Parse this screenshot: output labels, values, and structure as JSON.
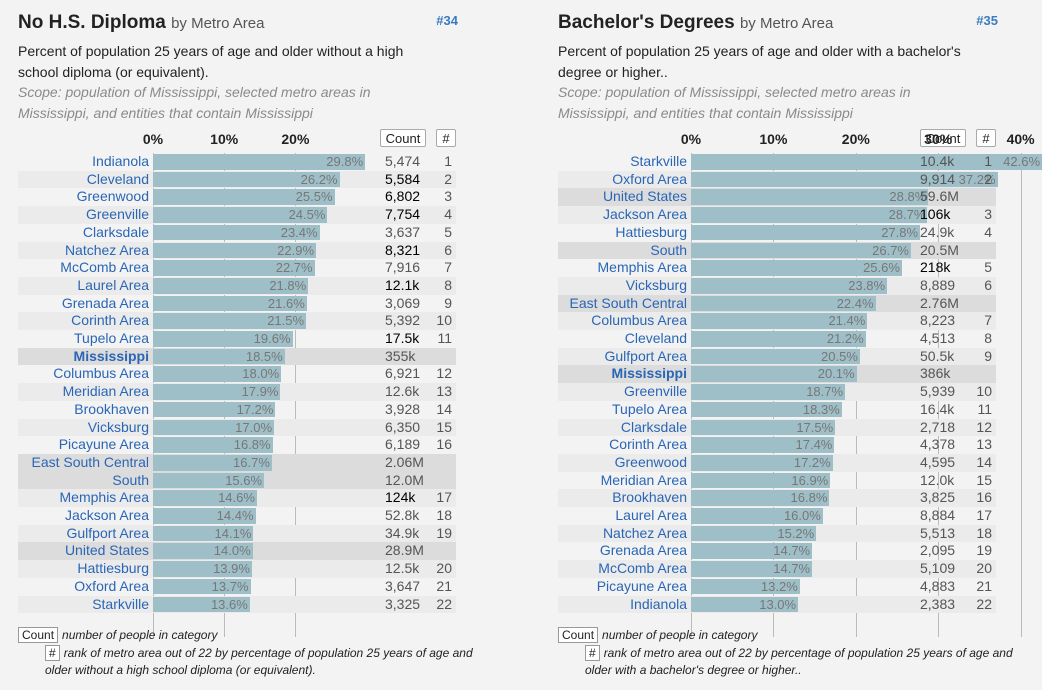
{
  "panels": [
    {
      "title": "No H.S. Diploma",
      "title_sub": "by Metro Area",
      "number": "#34",
      "description": "Percent of population 25 years of age and older without a high school diploma (or equivalent).",
      "scope": "Scope: population of Mississippi, selected metro areas in Mississippi, and entities that contain Mississippi",
      "count_header": "Count",
      "rank_header": "#",
      "footer_count_box": "Count",
      "footer_count_text": "number of people in category",
      "footer_rank_box": "#",
      "footer_rank_text": "rank of metro area out of 22 by percentage of population 25 years of age and older without a high school diploma (or equivalent).",
      "chart_data": {
        "type": "bar",
        "orientation": "horizontal",
        "title": "No H.S. Diploma",
        "x_ticks": [
          "0%",
          "10%",
          "20%"
        ],
        "xlim": [
          0,
          30
        ],
        "rows": [
          {
            "label": "Indianola",
            "value": 29.8,
            "pct": "29.8%",
            "count": "5,474",
            "rank": "1",
            "kind": "metro",
            "hi": false
          },
          {
            "label": "Cleveland",
            "value": 26.2,
            "pct": "26.2%",
            "count": "5,584",
            "rank": "2",
            "kind": "metro",
            "hi": true
          },
          {
            "label": "Greenwood",
            "value": 25.5,
            "pct": "25.5%",
            "count": "6,802",
            "rank": "3",
            "kind": "metro",
            "hi": true
          },
          {
            "label": "Greenville",
            "value": 24.5,
            "pct": "24.5%",
            "count": "7,754",
            "rank": "4",
            "kind": "metro",
            "hi": true
          },
          {
            "label": "Clarksdale",
            "value": 23.4,
            "pct": "23.4%",
            "count": "3,637",
            "rank": "5",
            "kind": "metro",
            "hi": false
          },
          {
            "label": "Natchez Area",
            "value": 22.9,
            "pct": "22.9%",
            "count": "8,321",
            "rank": "6",
            "kind": "metro",
            "hi": true
          },
          {
            "label": "McComb Area",
            "value": 22.7,
            "pct": "22.7%",
            "count": "7,916",
            "rank": "7",
            "kind": "metro",
            "hi": false
          },
          {
            "label": "Laurel Area",
            "value": 21.8,
            "pct": "21.8%",
            "count": "12.1k",
            "rank": "8",
            "kind": "metro",
            "hi": true
          },
          {
            "label": "Grenada Area",
            "value": 21.6,
            "pct": "21.6%",
            "count": "3,069",
            "rank": "9",
            "kind": "metro",
            "hi": false
          },
          {
            "label": "Corinth Area",
            "value": 21.5,
            "pct": "21.5%",
            "count": "5,392",
            "rank": "10",
            "kind": "metro",
            "hi": false
          },
          {
            "label": "Tupelo Area",
            "value": 19.6,
            "pct": "19.6%",
            "count": "17.5k",
            "rank": "11",
            "kind": "metro",
            "hi": true
          },
          {
            "label": "Mississippi",
            "value": 18.5,
            "pct": "18.5%",
            "count": "355k",
            "rank": "",
            "kind": "state",
            "hi": false
          },
          {
            "label": "Columbus Area",
            "value": 18.0,
            "pct": "18.0%",
            "count": "6,921",
            "rank": "12",
            "kind": "metro",
            "hi": false
          },
          {
            "label": "Meridian Area",
            "value": 17.9,
            "pct": "17.9%",
            "count": "12.6k",
            "rank": "13",
            "kind": "metro",
            "hi": false
          },
          {
            "label": "Brookhaven",
            "value": 17.2,
            "pct": "17.2%",
            "count": "3,928",
            "rank": "14",
            "kind": "metro",
            "hi": false
          },
          {
            "label": "Vicksburg",
            "value": 17.0,
            "pct": "17.0%",
            "count": "6,350",
            "rank": "15",
            "kind": "metro",
            "hi": false
          },
          {
            "label": "Picayune Area",
            "value": 16.8,
            "pct": "16.8%",
            "count": "6,189",
            "rank": "16",
            "kind": "metro",
            "hi": false
          },
          {
            "label": "East South Central",
            "value": 16.7,
            "pct": "16.7%",
            "count": "2.06M",
            "rank": "",
            "kind": "agg",
            "hi": false
          },
          {
            "label": "South",
            "value": 15.6,
            "pct": "15.6%",
            "count": "12.0M",
            "rank": "",
            "kind": "agg",
            "hi": false
          },
          {
            "label": "Memphis Area",
            "value": 14.6,
            "pct": "14.6%",
            "count": "124k",
            "rank": "17",
            "kind": "metro",
            "hi": true
          },
          {
            "label": "Jackson Area",
            "value": 14.4,
            "pct": "14.4%",
            "count": "52.8k",
            "rank": "18",
            "kind": "metro",
            "hi": false
          },
          {
            "label": "Gulfport Area",
            "value": 14.1,
            "pct": "14.1%",
            "count": "34.9k",
            "rank": "19",
            "kind": "metro",
            "hi": false
          },
          {
            "label": "United States",
            "value": 14.0,
            "pct": "14.0%",
            "count": "28.9M",
            "rank": "",
            "kind": "agg",
            "hi": false
          },
          {
            "label": "Hattiesburg",
            "value": 13.9,
            "pct": "13.9%",
            "count": "12.5k",
            "rank": "20",
            "kind": "metro",
            "hi": false
          },
          {
            "label": "Oxford Area",
            "value": 13.7,
            "pct": "13.7%",
            "count": "3,647",
            "rank": "21",
            "kind": "metro",
            "hi": false
          },
          {
            "label": "Starkville",
            "value": 13.6,
            "pct": "13.6%",
            "count": "3,325",
            "rank": "22",
            "kind": "metro",
            "hi": false
          }
        ]
      }
    },
    {
      "title": "Bachelor's Degrees",
      "title_sub": "by Metro Area",
      "number": "#35",
      "description": "Percent of population 25 years of age and older with a bachelor's degree or higher..",
      "scope": "Scope: population of Mississippi, selected metro areas in Mississippi, and entities that contain Mississippi",
      "count_header": "Count",
      "rank_header": "#",
      "footer_count_box": "Count",
      "footer_count_text": "number of people in category",
      "footer_rank_box": "#",
      "footer_rank_text": "rank of metro area out of 22 by percentage of population 25 years of age and older with a bachelor's degree or higher..",
      "chart_data": {
        "type": "bar",
        "orientation": "horizontal",
        "title": "Bachelor's Degrees",
        "x_ticks": [
          "0%",
          "10%",
          "20%",
          "30%",
          "40%"
        ],
        "xlim": [
          0,
          43
        ],
        "rows": [
          {
            "label": "Starkville",
            "value": 42.6,
            "pct": "42.6%",
            "count": "10.4k",
            "rank": "1",
            "kind": "metro",
            "hi": false
          },
          {
            "label": "Oxford Area",
            "value": 37.2,
            "pct": "37.2%",
            "count": "9,914",
            "rank": "2",
            "kind": "metro",
            "hi": false
          },
          {
            "label": "United States",
            "value": 28.8,
            "pct": "28.8%",
            "count": "59.6M",
            "rank": "",
            "kind": "agg",
            "hi": false
          },
          {
            "label": "Jackson Area",
            "value": 28.7,
            "pct": "28.7%",
            "count": "106k",
            "rank": "3",
            "kind": "metro",
            "hi": true
          },
          {
            "label": "Hattiesburg",
            "value": 27.8,
            "pct": "27.8%",
            "count": "24.9k",
            "rank": "4",
            "kind": "metro",
            "hi": false
          },
          {
            "label": "South",
            "value": 26.7,
            "pct": "26.7%",
            "count": "20.5M",
            "rank": "",
            "kind": "agg",
            "hi": false
          },
          {
            "label": "Memphis Area",
            "value": 25.6,
            "pct": "25.6%",
            "count": "218k",
            "rank": "5",
            "kind": "metro",
            "hi": true
          },
          {
            "label": "Vicksburg",
            "value": 23.8,
            "pct": "23.8%",
            "count": "8,889",
            "rank": "6",
            "kind": "metro",
            "hi": false
          },
          {
            "label": "East South Central",
            "value": 22.4,
            "pct": "22.4%",
            "count": "2.76M",
            "rank": "",
            "kind": "agg",
            "hi": false
          },
          {
            "label": "Columbus Area",
            "value": 21.4,
            "pct": "21.4%",
            "count": "8,223",
            "rank": "7",
            "kind": "metro",
            "hi": false
          },
          {
            "label": "Cleveland",
            "value": 21.2,
            "pct": "21.2%",
            "count": "4,513",
            "rank": "8",
            "kind": "metro",
            "hi": false
          },
          {
            "label": "Gulfport Area",
            "value": 20.5,
            "pct": "20.5%",
            "count": "50.5k",
            "rank": "9",
            "kind": "metro",
            "hi": false
          },
          {
            "label": "Mississippi",
            "value": 20.1,
            "pct": "20.1%",
            "count": "386k",
            "rank": "",
            "kind": "state",
            "hi": false
          },
          {
            "label": "Greenville",
            "value": 18.7,
            "pct": "18.7%",
            "count": "5,939",
            "rank": "10",
            "kind": "metro",
            "hi": false
          },
          {
            "label": "Tupelo Area",
            "value": 18.3,
            "pct": "18.3%",
            "count": "16.4k",
            "rank": "11",
            "kind": "metro",
            "hi": false
          },
          {
            "label": "Clarksdale",
            "value": 17.5,
            "pct": "17.5%",
            "count": "2,718",
            "rank": "12",
            "kind": "metro",
            "hi": false
          },
          {
            "label": "Corinth Area",
            "value": 17.4,
            "pct": "17.4%",
            "count": "4,378",
            "rank": "13",
            "kind": "metro",
            "hi": false
          },
          {
            "label": "Greenwood",
            "value": 17.2,
            "pct": "17.2%",
            "count": "4,595",
            "rank": "14",
            "kind": "metro",
            "hi": false
          },
          {
            "label": "Meridian Area",
            "value": 16.9,
            "pct": "16.9%",
            "count": "12.0k",
            "rank": "15",
            "kind": "metro",
            "hi": false
          },
          {
            "label": "Brookhaven",
            "value": 16.8,
            "pct": "16.8%",
            "count": "3,825",
            "rank": "16",
            "kind": "metro",
            "hi": false
          },
          {
            "label": "Laurel Area",
            "value": 16.0,
            "pct": "16.0%",
            "count": "8,884",
            "rank": "17",
            "kind": "metro",
            "hi": false
          },
          {
            "label": "Natchez Area",
            "value": 15.2,
            "pct": "15.2%",
            "count": "5,513",
            "rank": "18",
            "kind": "metro",
            "hi": false
          },
          {
            "label": "Grenada Area",
            "value": 14.7,
            "pct": "14.7%",
            "count": "2,095",
            "rank": "19",
            "kind": "metro",
            "hi": false
          },
          {
            "label": "McComb Area",
            "value": 14.7,
            "pct": "14.7%",
            "count": "5,109",
            "rank": "20",
            "kind": "metro",
            "hi": false
          },
          {
            "label": "Picayune Area",
            "value": 13.2,
            "pct": "13.2%",
            "count": "4,883",
            "rank": "21",
            "kind": "metro",
            "hi": false
          },
          {
            "label": "Indianola",
            "value": 13.0,
            "pct": "13.0%",
            "count": "2,383",
            "rank": "22",
            "kind": "metro",
            "hi": false
          }
        ]
      }
    }
  ],
  "colors": {
    "bar": "#9fbfc8",
    "link": "#2a66b5",
    "accent": "#3a7bbf"
  }
}
